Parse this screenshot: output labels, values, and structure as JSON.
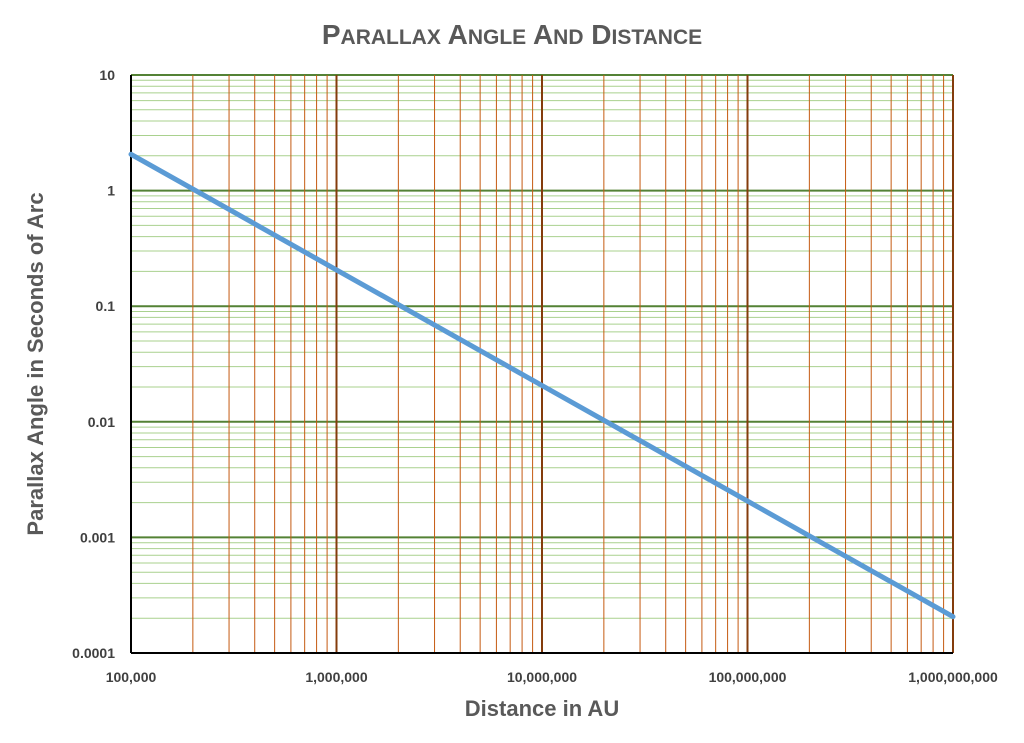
{
  "chart_data": {
    "type": "line",
    "title": "Parallax Angle and Distance",
    "xlabel": "Distance in AU",
    "ylabel": "Parallax Angle in Seconds of Arc",
    "x_scale": "log",
    "y_scale": "log",
    "xlim": [
      100000,
      1000000000
    ],
    "ylim": [
      0.0001,
      10
    ],
    "x_tick_labels": [
      "100,000",
      "1,000,000",
      "10,000,000",
      "100,000,000",
      "1,000,000,000"
    ],
    "y_tick_labels": [
      "0.0001",
      "0.001",
      "0.01",
      "0.1",
      "1",
      "10"
    ],
    "grid": true,
    "series": [
      {
        "x": [
          100000,
          206265,
          1000000,
          2062650,
          10000000,
          20626500,
          100000000,
          206265000,
          1000000000
        ],
        "y": [
          2.06265,
          1,
          0.206265,
          0.1,
          0.0206265,
          0.01,
          0.00206265,
          0.001,
          0.000206265
        ]
      }
    ]
  },
  "colors": {
    "line": "#5b9bd5",
    "major_y_grid": "#548235",
    "minor_y_grid": "#a9d18e",
    "major_x_grid": "#843c0c",
    "minor_x_grid": "#c55a11",
    "axis": "#000000",
    "title": "#595959"
  }
}
